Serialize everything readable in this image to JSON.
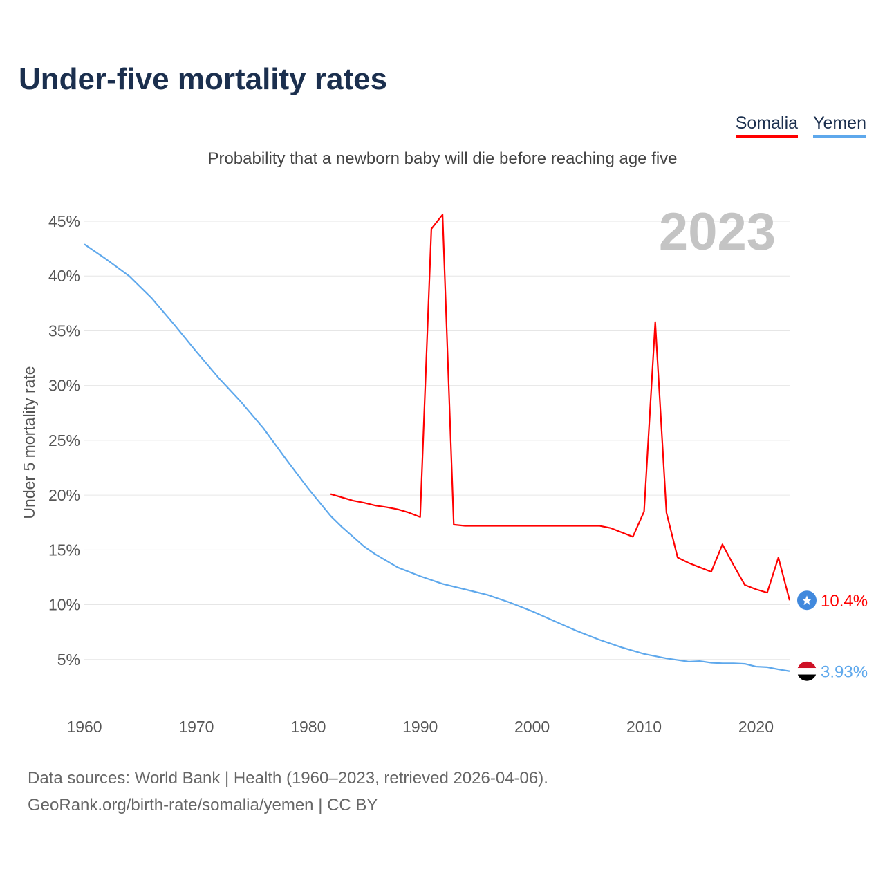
{
  "title": "Under-five mortality rates",
  "subtitle": "Probability that a newborn baby will die before reaching age five",
  "year_display": "2023",
  "footer": {
    "line1": "Data sources: World Bank | Health (1960–2023, retrieved 2026-04-06).",
    "line2": "GeoRank.org/birth-rate/somalia/yemen | CC BY"
  },
  "chart_data": {
    "type": "line",
    "title": "Under-five mortality rates",
    "ylabel": "Under 5 mortality rate",
    "xlabel": "",
    "xlim": [
      1960,
      2023
    ],
    "ylim": [
      0,
      45
    ],
    "grid": true,
    "legend": "top-right",
    "x_ticks": [
      "1960",
      "1970",
      "1980",
      "1990",
      "2000",
      "2010",
      "2020"
    ],
    "y_ticks": [
      "5%",
      "10%",
      "15%",
      "20%",
      "25%",
      "30%",
      "35%",
      "40%",
      "45%"
    ],
    "series": [
      {
        "name": "Somalia",
        "color": "#ff0000",
        "end_label": "10.4%",
        "flag": "somalia-flag",
        "x": [
          1982,
          1983,
          1984,
          1985,
          1986,
          1987,
          1988,
          1989,
          1990,
          1991,
          1992,
          1993,
          1994,
          1995,
          1996,
          1997,
          1998,
          1999,
          2000,
          2001,
          2002,
          2003,
          2004,
          2005,
          2006,
          2007,
          2008,
          2009,
          2010,
          2011,
          2012,
          2013,
          2014,
          2015,
          2016,
          2017,
          2018,
          2019,
          2020,
          2021,
          2022,
          2023
        ],
        "values": [
          20.1,
          19.8,
          19.5,
          19.3,
          19.05,
          18.9,
          18.7,
          18.4,
          18.0,
          44.3,
          45.6,
          17.3,
          17.2,
          17.2,
          17.2,
          17.2,
          17.2,
          17.2,
          17.2,
          17.2,
          17.2,
          17.2,
          17.2,
          17.2,
          17.2,
          17.0,
          16.6,
          16.2,
          18.5,
          35.8,
          18.4,
          14.3,
          13.8,
          13.4,
          13.0,
          15.5,
          13.6,
          11.8,
          11.4,
          11.1,
          14.3,
          10.4
        ]
      },
      {
        "name": "Yemen",
        "color": "#5ea8ec",
        "end_label": "3.93%",
        "flag": "yemen-flag",
        "x": [
          1960,
          1962,
          1964,
          1966,
          1968,
          1970,
          1972,
          1974,
          1976,
          1978,
          1980,
          1982,
          1983,
          1984,
          1985,
          1986,
          1988,
          1990,
          1992,
          1994,
          1996,
          1998,
          2000,
          2002,
          2004,
          2006,
          2008,
          2010,
          2012,
          2014,
          2015,
          2016,
          2017,
          2018,
          2019,
          2020,
          2021,
          2022,
          2023
        ],
        "values": [
          42.9,
          41.5,
          40.0,
          38.0,
          35.6,
          33.1,
          30.7,
          28.5,
          26.1,
          23.3,
          20.6,
          18.1,
          17.1,
          16.2,
          15.3,
          14.6,
          13.4,
          12.6,
          11.9,
          11.4,
          10.9,
          10.2,
          9.4,
          8.5,
          7.6,
          6.8,
          6.1,
          5.5,
          5.1,
          4.8,
          4.85,
          4.7,
          4.65,
          4.65,
          4.6,
          4.35,
          4.3,
          4.1,
          3.93
        ]
      }
    ]
  }
}
